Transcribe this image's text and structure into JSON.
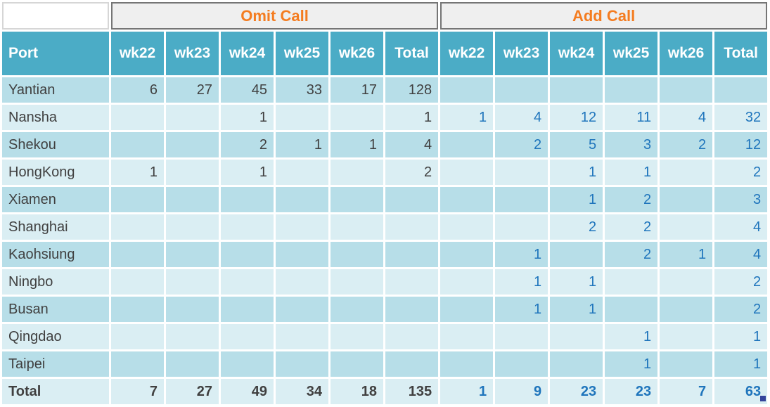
{
  "chart_data": {
    "type": "table",
    "groups": [
      {
        "label": "Omit Call"
      },
      {
        "label": "Add Call"
      }
    ],
    "port_header": "Port",
    "week_headers": [
      "wk22",
      "wk23",
      "wk24",
      "wk25",
      "wk26",
      "Total"
    ],
    "rows": [
      {
        "port": "Yantian",
        "omit": [
          "6",
          "27",
          "45",
          "33",
          "17",
          "128"
        ],
        "add": [
          "",
          "",
          "",
          "",
          "",
          ""
        ]
      },
      {
        "port": "Nansha",
        "omit": [
          "",
          "",
          "1",
          "",
          "",
          "1"
        ],
        "add": [
          "1",
          "4",
          "12",
          "11",
          "4",
          "32"
        ]
      },
      {
        "port": "Shekou",
        "omit": [
          "",
          "",
          "2",
          "1",
          "1",
          "4"
        ],
        "add": [
          "",
          "2",
          "5",
          "3",
          "2",
          "12"
        ]
      },
      {
        "port": "HongKong",
        "omit": [
          "1",
          "",
          "1",
          "",
          "",
          "2"
        ],
        "add": [
          "",
          "",
          "1",
          "1",
          "",
          "2"
        ]
      },
      {
        "port": "Xiamen",
        "omit": [
          "",
          "",
          "",
          "",
          "",
          ""
        ],
        "add": [
          "",
          "",
          "1",
          "2",
          "",
          "3"
        ]
      },
      {
        "port": "Shanghai",
        "omit": [
          "",
          "",
          "",
          "",
          "",
          ""
        ],
        "add": [
          "",
          "",
          "2",
          "2",
          "",
          "4"
        ]
      },
      {
        "port": "Kaohsiung",
        "omit": [
          "",
          "",
          "",
          "",
          "",
          ""
        ],
        "add": [
          "",
          "1",
          "",
          "2",
          "1",
          "4"
        ]
      },
      {
        "port": "Ningbo",
        "omit": [
          "",
          "",
          "",
          "",
          "",
          ""
        ],
        "add": [
          "",
          "1",
          "1",
          "",
          "",
          "2"
        ]
      },
      {
        "port": "Busan",
        "omit": [
          "",
          "",
          "",
          "",
          "",
          ""
        ],
        "add": [
          "",
          "1",
          "1",
          "",
          "",
          "2"
        ]
      },
      {
        "port": "Qingdao",
        "omit": [
          "",
          "",
          "",
          "",
          "",
          ""
        ],
        "add": [
          "",
          "",
          "",
          "1",
          "",
          "1"
        ]
      },
      {
        "port": "Taipei",
        "omit": [
          "",
          "",
          "",
          "",
          "",
          ""
        ],
        "add": [
          "",
          "",
          "",
          "1",
          "",
          "1"
        ]
      }
    ],
    "total_row": {
      "port": "Total",
      "omit": [
        "7",
        "27",
        "49",
        "34",
        "18",
        "135"
      ],
      "add": [
        "1",
        "9",
        "23",
        "23",
        "7",
        "63"
      ]
    }
  },
  "colors": {
    "header_teal": "#4bacc6",
    "row_band_dark": "#b7dee8",
    "row_band_light": "#daeef3",
    "group_header_bg": "#efefef",
    "group_header_border": "#757575",
    "group_header_text": "#f47c20",
    "omit_value_text": "#404040",
    "add_value_text": "#1f75bc",
    "fill_handle": "#35449b"
  }
}
